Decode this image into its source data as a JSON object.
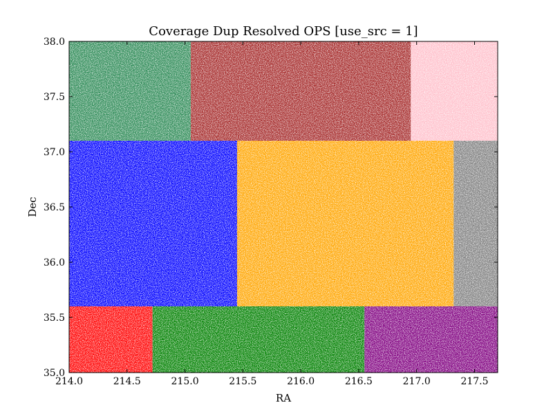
{
  "chart_data": {
    "type": "scatter",
    "title": "Coverage Dup Resolved OPS [use_src = 1]",
    "xlabel": "RA",
    "ylabel": "Dec",
    "xlim": [
      214.0,
      217.7
    ],
    "ylim": [
      35.0,
      38.0
    ],
    "xticks": [
      "214.0",
      "214.5",
      "215.0",
      "215.5",
      "216.0",
      "216.5",
      "217.0",
      "217.5"
    ],
    "xtick_values": [
      214.0,
      214.5,
      215.0,
      215.5,
      216.0,
      216.5,
      217.0,
      217.5
    ],
    "yticks": [
      "35.0",
      "35.5",
      "36.0",
      "36.5",
      "37.0",
      "37.5",
      "38.0"
    ],
    "ytick_values": [
      35.0,
      35.5,
      36.0,
      36.5,
      37.0,
      37.5,
      38.0
    ],
    "grid": false,
    "legend": "none",
    "series": [
      {
        "color": "#2e8b57",
        "ra": [
          214.0,
          215.05
        ],
        "dec": [
          37.1,
          38.0
        ]
      },
      {
        "color": "#a52a2a",
        "ra": [
          215.05,
          216.95
        ],
        "dec": [
          37.1,
          38.0
        ]
      },
      {
        "color": "#ffc0cb",
        "ra": [
          216.95,
          217.7
        ],
        "dec": [
          37.1,
          38.0
        ]
      },
      {
        "color": "#0000ff",
        "ra": [
          214.0,
          215.45
        ],
        "dec": [
          35.6,
          37.1
        ]
      },
      {
        "color": "#ffa500",
        "ra": [
          215.45,
          217.32
        ],
        "dec": [
          35.6,
          37.1
        ]
      },
      {
        "color": "#808080",
        "ra": [
          217.32,
          217.7
        ],
        "dec": [
          35.6,
          37.1
        ]
      },
      {
        "color": "#ff0000",
        "ra": [
          214.0,
          214.72
        ],
        "dec": [
          35.0,
          35.6
        ]
      },
      {
        "color": "#008000",
        "ra": [
          214.72,
          216.55
        ],
        "dec": [
          35.0,
          35.6
        ]
      },
      {
        "color": "#800080",
        "ra": [
          216.55,
          217.7
        ],
        "dec": [
          35.0,
          35.6
        ]
      }
    ]
  }
}
